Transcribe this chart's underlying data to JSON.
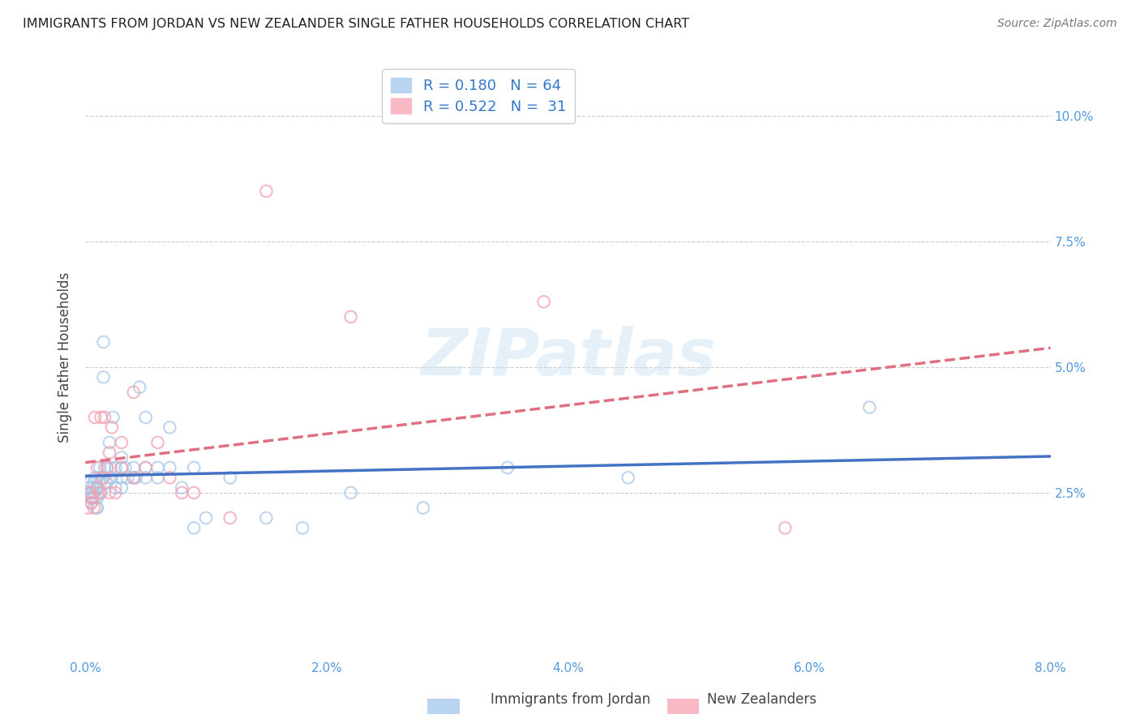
{
  "title": "IMMIGRANTS FROM JORDAN VS NEW ZEALANDER SINGLE FATHER HOUSEHOLDS CORRELATION CHART",
  "source": "Source: ZipAtlas.com",
  "ylabel": "Single Father Households",
  "xlim": [
    0.0,
    0.08
  ],
  "ylim": [
    -0.008,
    0.112
  ],
  "xtick_labels": [
    "0.0%",
    "2.0%",
    "4.0%",
    "6.0%",
    "8.0%"
  ],
  "xtick_values": [
    0.0,
    0.02,
    0.04,
    0.06,
    0.08
  ],
  "ytick_labels": [
    "2.5%",
    "5.0%",
    "7.5%",
    "10.0%"
  ],
  "ytick_values": [
    0.025,
    0.05,
    0.075,
    0.1
  ],
  "legend_r1": "R = 0.180",
  "legend_n1": "N = 64",
  "legend_r2": "R = 0.522",
  "legend_n2": "N = 31",
  "legend_label1": "Immigrants from Jordan",
  "legend_label2": "New Zealanders",
  "blue_scatter": "#a8c8e8",
  "blue_line": "#4472c4",
  "pink_scatter": "#f4a0b0",
  "pink_line": "#e07080",
  "background_color": "#ffffff",
  "watermark": "ZIPatlas",
  "jordan_x": [
    0.0002,
    0.0003,
    0.0004,
    0.0004,
    0.0005,
    0.0005,
    0.0006,
    0.0006,
    0.0007,
    0.0007,
    0.0008,
    0.0008,
    0.0009,
    0.0009,
    0.001,
    0.001,
    0.001,
    0.001,
    0.0012,
    0.0012,
    0.0013,
    0.0014,
    0.0015,
    0.0015,
    0.0016,
    0.0017,
    0.0018,
    0.0018,
    0.002,
    0.002,
    0.0021,
    0.0022,
    0.0023,
    0.0025,
    0.0025,
    0.003,
    0.003,
    0.003,
    0.003,
    0.0033,
    0.0035,
    0.004,
    0.004,
    0.0042,
    0.0045,
    0.005,
    0.005,
    0.005,
    0.006,
    0.006,
    0.007,
    0.007,
    0.008,
    0.009,
    0.009,
    0.01,
    0.012,
    0.015,
    0.018,
    0.022,
    0.028,
    0.035,
    0.045,
    0.065
  ],
  "jordan_y": [
    0.025,
    0.026,
    0.027,
    0.024,
    0.025,
    0.023,
    0.026,
    0.024,
    0.027,
    0.025,
    0.028,
    0.024,
    0.026,
    0.022,
    0.028,
    0.026,
    0.024,
    0.022,
    0.03,
    0.027,
    0.025,
    0.028,
    0.055,
    0.048,
    0.03,
    0.027,
    0.03,
    0.027,
    0.035,
    0.028,
    0.03,
    0.028,
    0.04,
    0.026,
    0.03,
    0.032,
    0.03,
    0.028,
    0.026,
    0.03,
    0.028,
    0.028,
    0.03,
    0.028,
    0.046,
    0.03,
    0.028,
    0.04,
    0.03,
    0.028,
    0.03,
    0.038,
    0.026,
    0.03,
    0.018,
    0.02,
    0.028,
    0.02,
    0.018,
    0.025,
    0.022,
    0.03,
    0.028,
    0.042
  ],
  "nz_x": [
    0.0002,
    0.0004,
    0.0005,
    0.0006,
    0.0007,
    0.0008,
    0.001,
    0.001,
    0.0012,
    0.0013,
    0.0015,
    0.0016,
    0.0018,
    0.002,
    0.002,
    0.0022,
    0.0025,
    0.003,
    0.003,
    0.004,
    0.004,
    0.005,
    0.006,
    0.007,
    0.008,
    0.009,
    0.012,
    0.015,
    0.022,
    0.038,
    0.058
  ],
  "nz_y": [
    0.022,
    0.025,
    0.023,
    0.024,
    0.022,
    0.04,
    0.026,
    0.03,
    0.025,
    0.04,
    0.028,
    0.04,
    0.03,
    0.033,
    0.025,
    0.038,
    0.025,
    0.035,
    0.03,
    0.045,
    0.028,
    0.03,
    0.035,
    0.028,
    0.025,
    0.025,
    0.02,
    0.085,
    0.06,
    0.063,
    0.018
  ]
}
